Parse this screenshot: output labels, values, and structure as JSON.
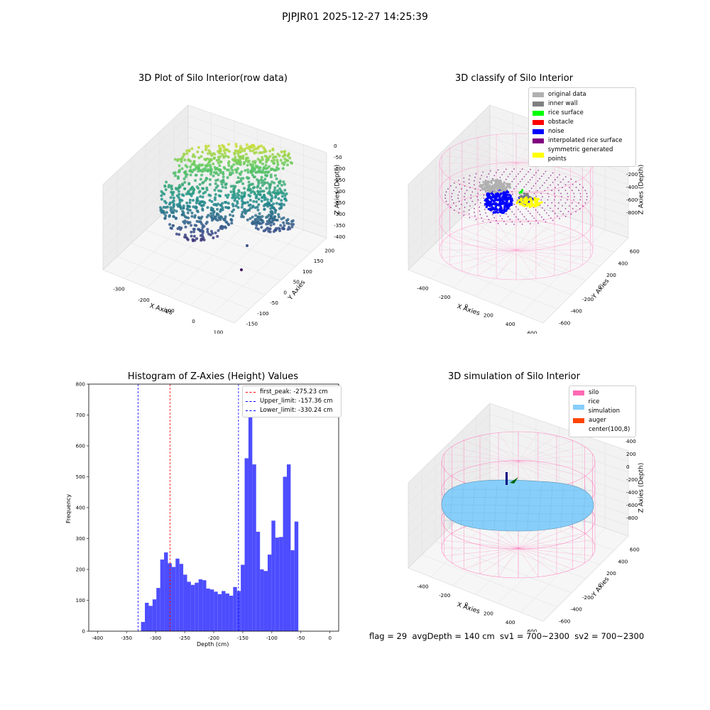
{
  "suptitle": "PJPJR01 2025-12-27 14:25:39",
  "footer": "flag = 29  avgDepth = 140 cm  sv1 = 700~2300  sv2 = 700~2300",
  "chart_data": [
    {
      "type": "scatter",
      "projection": "3d",
      "title": "3D Plot of Silo Interior(row data)",
      "xlabel": "X Axies",
      "ylabel": "Y Axies",
      "zlabel": "Z Axies (Depth)",
      "xticks": [
        "-300",
        "-200",
        "-100",
        "0",
        "100"
      ],
      "yticks": [
        "-150",
        "-100",
        "-50",
        "0",
        "50",
        "100",
        "150",
        "200"
      ],
      "zticks": [
        "0",
        "-50",
        "-100",
        "-150",
        "-200",
        "-250",
        "-300",
        "-350",
        "-400"
      ],
      "colormap": "viridis"
    },
    {
      "type": "scatter",
      "projection": "3d",
      "title": "3D classify of Silo Interior",
      "xlabel": "X Axies",
      "ylabel": "Y Axies",
      "zlabel": "Z Axies (Depth)",
      "xticks": [
        "-400",
        "-200",
        "0",
        "200",
        "400",
        "600"
      ],
      "yticks": [
        "-600",
        "-400",
        "-200",
        "0",
        "200",
        "400",
        "600"
      ],
      "zticks": [
        "200",
        "0",
        "-200",
        "-400",
        "-600",
        "-800"
      ],
      "legend_position": "upper-right",
      "legend": [
        {
          "label": "original data",
          "color": "#b0b0b0"
        },
        {
          "label": "inner wall",
          "color": "#808080"
        },
        {
          "label": "rice surface",
          "color": "#00ff00"
        },
        {
          "label": "obstacle",
          "color": "#ff0000"
        },
        {
          "label": "noise",
          "color": "#0000ff"
        },
        {
          "label": "interpolated rice surface",
          "color": "#800080"
        },
        {
          "label": "symmetric generated points",
          "color": "#ffff00"
        }
      ]
    },
    {
      "type": "bar",
      "title": "Histogram of Z-Axies (Height) Values",
      "xlabel": "Depth (cm)",
      "ylabel": "Frequency",
      "xlim": [
        -415,
        15
      ],
      "ylim": [
        0,
        800
      ],
      "xticks": [
        -400,
        -350,
        -300,
        -250,
        -200,
        -150,
        -100,
        -50,
        0
      ],
      "yticks": [
        0,
        100,
        200,
        300,
        400,
        500,
        600,
        700,
        800
      ],
      "bar_color": "#4d4dff",
      "bins": {
        "start": -325,
        "width": 6.6,
        "counts": [
          30,
          92,
          82,
          103,
          140,
          232,
          255,
          220,
          208,
          235,
          218,
          183,
          160,
          150,
          157,
          168,
          165,
          138,
          135,
          128,
          120,
          130,
          122,
          115,
          143,
          130,
          215,
          560,
          760,
          540,
          322,
          200,
          195,
          248,
          358,
          303,
          305,
          500,
          540,
          262,
          355
        ]
      },
      "vlines": [
        {
          "label": "first_peak: -275.23 cm",
          "x": -275.23,
          "color": "#ff0000"
        },
        {
          "label": "Upper_limit: -157.36 cm",
          "x": -157.36,
          "color": "#0000ff"
        },
        {
          "label": "Lower_limit: -330.24 cm",
          "x": -330.24,
          "color": "#0000ff"
        }
      ],
      "legend_position": "upper-right"
    },
    {
      "type": "scatter",
      "projection": "3d",
      "title": "3D simulation of Silo Interior",
      "xlabel": "X Axies",
      "ylabel": "Y Axies",
      "zlabel": "Z Axies (Depth)",
      "xticks": [
        "-400",
        "-200",
        "0",
        "200",
        "400",
        "600"
      ],
      "yticks": [
        "-600",
        "-400",
        "-200",
        "0",
        "200",
        "400",
        "600"
      ],
      "zticks": [
        "400",
        "200",
        "0",
        "-200",
        "-400",
        "-600",
        "-800"
      ],
      "legend_position": "upper-right",
      "legend": [
        {
          "label": "silo",
          "color": "#ff69b4"
        },
        {
          "label": "rice simulation",
          "color": "#87cefa"
        },
        {
          "label": "auger",
          "color": "#ff4500"
        },
        {
          "label": "center(100,8)",
          "color": ""
        }
      ]
    }
  ]
}
